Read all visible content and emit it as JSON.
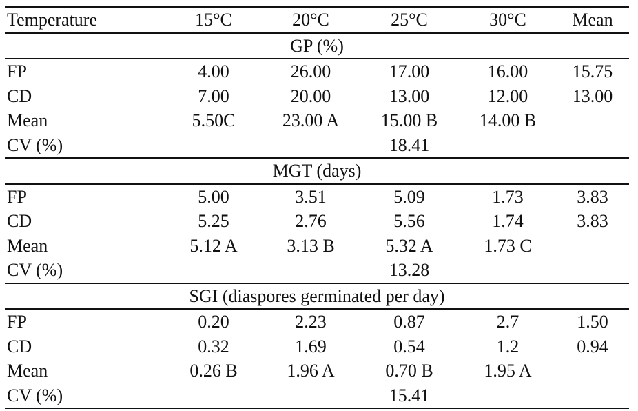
{
  "table": {
    "headers": [
      "Temperature",
      "15°C",
      "20°C",
      "25°C",
      "30°C",
      "Mean"
    ],
    "sections": [
      {
        "title": "GP (%)",
        "rows": [
          {
            "label": "FP",
            "cells": [
              "4.00",
              "26.00",
              "17.00",
              "16.00",
              "15.75"
            ]
          },
          {
            "label": "CD",
            "cells": [
              "7.00",
              "20.00",
              "13.00",
              "12.00",
              "13.00"
            ]
          },
          {
            "label": "Mean",
            "cells": [
              "5.50C",
              "23.00 A",
              "15.00 B",
              "14.00 B",
              ""
            ]
          }
        ],
        "cv": {
          "label": "CV (%)",
          "value": "18.41"
        }
      },
      {
        "title": "MGT (days)",
        "rows": [
          {
            "label": "FP",
            "cells": [
              "5.00",
              "3.51",
              "5.09",
              "1.73",
              "3.83"
            ]
          },
          {
            "label": "CD",
            "cells": [
              "5.25",
              "2.76",
              "5.56",
              "1.74",
              "3.83"
            ]
          },
          {
            "label": "Mean",
            "cells": [
              "5.12 A",
              "3.13 B",
              "5.32 A",
              "1.73 C",
              ""
            ]
          }
        ],
        "cv": {
          "label": "CV (%)",
          "value": "13.28"
        }
      },
      {
        "title": "SGI (diaspores germinated per day)",
        "rows": [
          {
            "label": "FP",
            "cells": [
              "0.20",
              "2.23",
              "0.87",
              "2.7",
              "1.50"
            ]
          },
          {
            "label": "CD",
            "cells": [
              "0.32",
              "1.69",
              "0.54",
              "1.2",
              "0.94"
            ]
          },
          {
            "label": "Mean",
            "cells": [
              "0.26 B",
              "1.96 A",
              "0.70 B",
              "1.95 A",
              ""
            ]
          }
        ],
        "cv": {
          "label": "CV (%)",
          "value": "15.41"
        }
      }
    ]
  }
}
